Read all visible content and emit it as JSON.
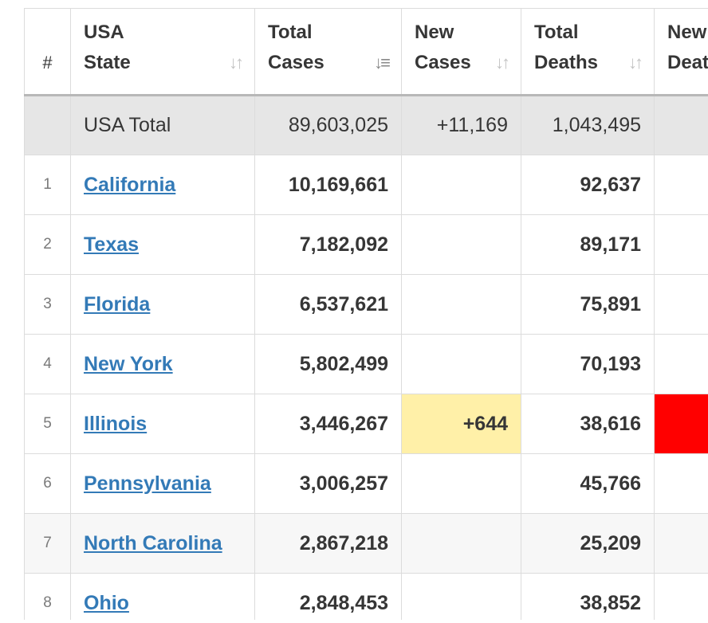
{
  "columns": [
    {
      "key": "idx",
      "label": "#"
    },
    {
      "key": "state",
      "label1": "USA",
      "label2": "State",
      "sort_icon": "sort-icon"
    },
    {
      "key": "total_cases",
      "label1": "Total",
      "label2": "Cases",
      "sort_icon": "sort-desc-icon"
    },
    {
      "key": "new_cases",
      "label1": "New",
      "label2": "Cases",
      "sort_icon": "sort-icon"
    },
    {
      "key": "total_deaths",
      "label1": "Total",
      "label2": "Deaths",
      "sort_icon": "sort-icon"
    },
    {
      "key": "new_deaths",
      "label1": "New",
      "label2": "Deat"
    }
  ],
  "total_row": {
    "label": "USA Total",
    "total_cases": "89,603,025",
    "new_cases": "+11,169",
    "total_deaths": "1,043,495",
    "new_deaths": ""
  },
  "rows": [
    {
      "idx": "1",
      "state": "California",
      "total_cases": "10,169,661",
      "new_cases": "",
      "total_deaths": "92,637",
      "new_deaths": ""
    },
    {
      "idx": "2",
      "state": "Texas",
      "total_cases": "7,182,092",
      "new_cases": "",
      "total_deaths": "89,171",
      "new_deaths": ""
    },
    {
      "idx": "3",
      "state": "Florida",
      "total_cases": "6,537,621",
      "new_cases": "",
      "total_deaths": "75,891",
      "new_deaths": ""
    },
    {
      "idx": "4",
      "state": "New York",
      "total_cases": "5,802,499",
      "new_cases": "",
      "total_deaths": "70,193",
      "new_deaths": ""
    },
    {
      "idx": "5",
      "state": "Illinois",
      "total_cases": "3,446,267",
      "new_cases": "+644",
      "total_deaths": "38,616",
      "new_deaths": ""
    },
    {
      "idx": "6",
      "state": "Pennsylvania",
      "total_cases": "3,006,257",
      "new_cases": "",
      "total_deaths": "45,766",
      "new_deaths": ""
    },
    {
      "idx": "7",
      "state": "North Carolina",
      "total_cases": "2,867,218",
      "new_cases": "",
      "total_deaths": "25,209",
      "new_deaths": ""
    },
    {
      "idx": "8",
      "state": "Ohio",
      "total_cases": "2,848,453",
      "new_cases": "",
      "total_deaths": "38,852",
      "new_deaths": ""
    }
  ],
  "colors": {
    "link": "#337ab7",
    "new_cases_highlight": "#fff0a8",
    "new_deaths_highlight": "#ff0000",
    "total_row_bg": "#e6e6e6"
  }
}
